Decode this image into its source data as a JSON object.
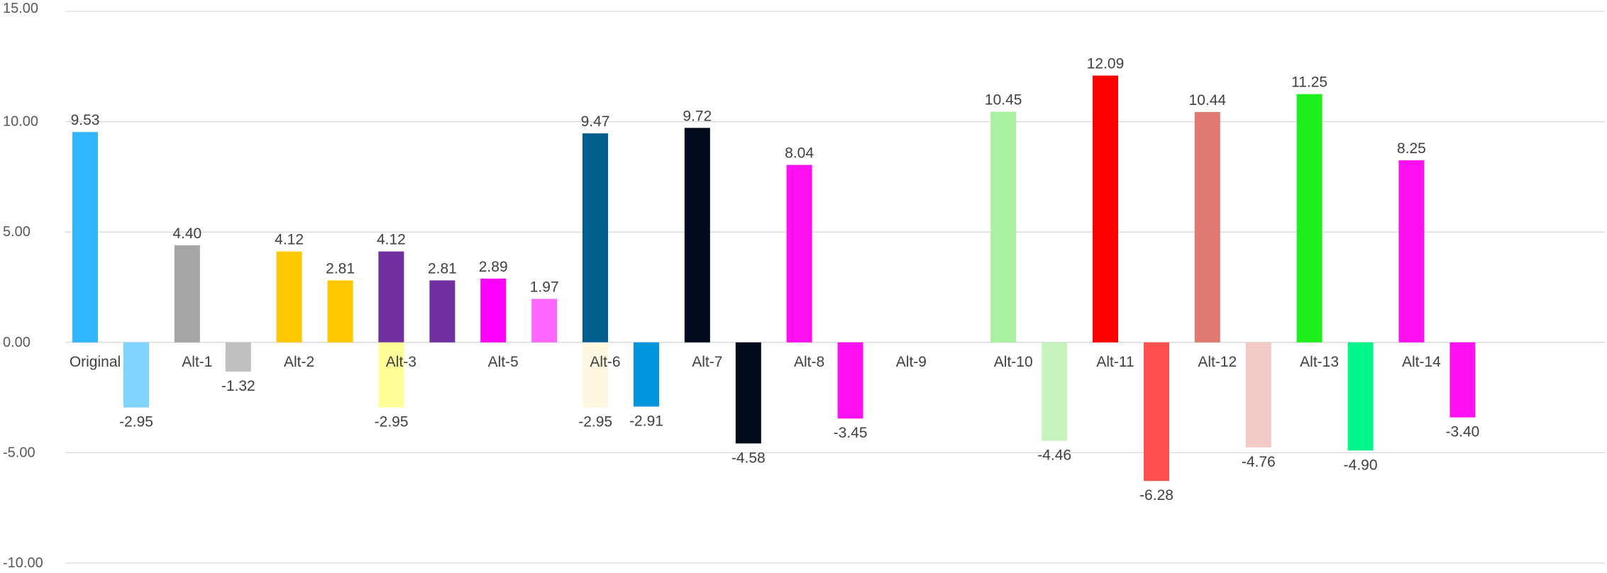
{
  "chart_data": {
    "type": "bar",
    "title": "",
    "xlabel": "",
    "ylabel": "",
    "ylim": [
      -10,
      15
    ],
    "yticks": [
      "15.00",
      "10.00",
      "5.00",
      "0.00",
      "-5.00",
      "-10.00"
    ],
    "grid": true,
    "legend": "none",
    "categories": [
      "Original",
      "Alt-1",
      "Alt-2",
      "Alt-3",
      "Alt-5",
      "Alt-6",
      "Alt-7",
      "Alt-8",
      "Alt-9",
      "Alt-10",
      "Alt-11",
      "Alt-12",
      "Alt-13",
      "Alt-14"
    ],
    "series": [
      {
        "values": [
          9.53,
          4.4,
          4.12,
          4.12,
          2.89,
          9.47,
          9.72,
          8.04,
          null,
          10.45,
          12.09,
          10.44,
          11.25,
          8.25
        ],
        "labels": [
          "9.53",
          "4.40",
          "4.12",
          "4.12",
          "2.89",
          "9.47",
          "9.72",
          "8.04",
          "",
          "10.45",
          "12.09",
          "10.44",
          "11.25",
          "8.25"
        ],
        "colors": [
          "#2fb6fb",
          "#a5a5a5",
          "#ffc800",
          "#7030a0",
          "#ff00ff",
          "#005e8f",
          "#000a1a",
          "#ff10f0",
          "#ffffff",
          "#a9f0a0",
          "#ff0000",
          "#e07a70",
          "#1ef01e",
          "#ff10f0"
        ]
      },
      {
        "values": [
          -2.95,
          -1.32,
          2.81,
          2.81,
          1.97,
          -2.91,
          -4.58,
          -3.45,
          null,
          -4.46,
          -6.28,
          -4.76,
          -4.9,
          -3.4
        ],
        "labels": [
          "-2.95",
          "-1.32",
          "2.81",
          "2.81",
          "1.97",
          "-2.91",
          "-4.58",
          "-3.45",
          "",
          "-4.46",
          "-6.28",
          "-4.76",
          "-4.90",
          "-3.40"
        ],
        "colors": [
          "#7fd4ff",
          "#bfbfbf",
          "#ffc800",
          "#7030a0",
          "#ff66ff",
          "#0095dc",
          "#000a1a",
          "#ff10f0",
          "#ffffff",
          "#c6f2bd",
          "#ff5050",
          "#f2cbc6",
          "#00f58a",
          "#ff10f0"
        ]
      },
      {
        "values": [
          null,
          null,
          -2.95,
          null,
          -2.95,
          null,
          null,
          null,
          null,
          null,
          null,
          null,
          null,
          null
        ],
        "labels": [
          "",
          "",
          "-2.95",
          "",
          "-2.95",
          "",
          "",
          "",
          "",
          "",
          "",
          "",
          "",
          ""
        ],
        "colors": [
          "#ffffff",
          "#ffffff",
          "#ffff99",
          "#ffffff",
          "#fff8e1",
          "#ffffff",
          "#ffffff",
          "#ffffff",
          "#ffffff",
          "#ffffff",
          "#ffffff",
          "#ffffff",
          "#ffffff",
          "#ffffff"
        ]
      }
    ]
  }
}
